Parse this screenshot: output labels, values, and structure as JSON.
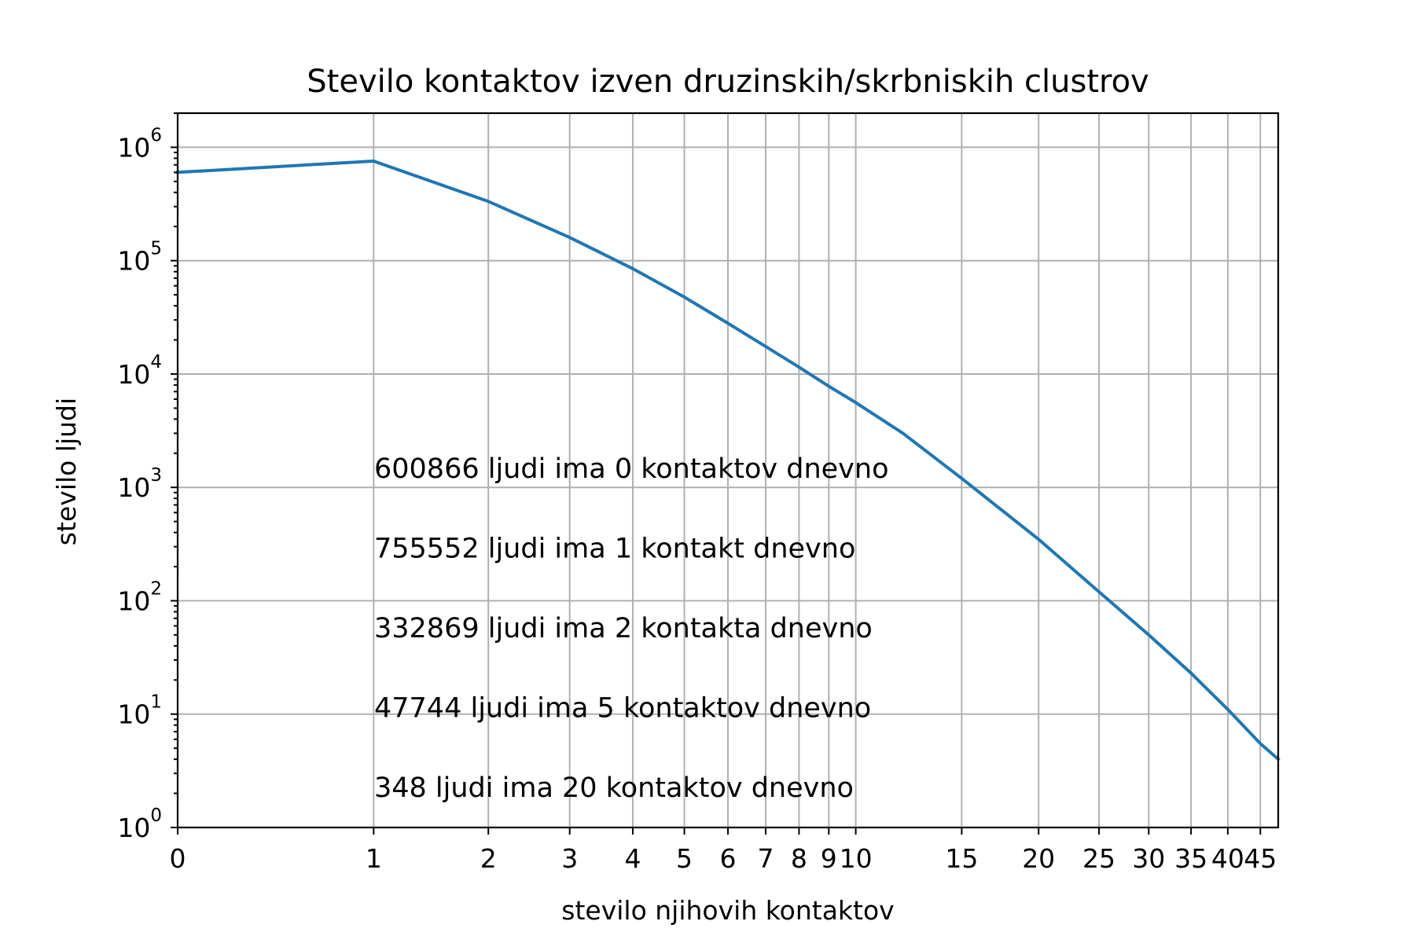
{
  "chart_data": {
    "type": "line",
    "title": "Stevilo kontaktov izven druzinskih/skrbniskih clustrov",
    "xlabel": "stevilo njihovih kontaktov",
    "ylabel": "stevilo ljudi",
    "x_scale": "symlog",
    "y_scale": "log",
    "xlim": [
      0,
      48
    ],
    "ylim": [
      1,
      2000000
    ],
    "grid": true,
    "x_ticks": [
      0,
      1,
      2,
      3,
      4,
      5,
      6,
      7,
      8,
      9,
      10,
      15,
      20,
      25,
      30,
      35,
      40,
      45
    ],
    "x_tick_labels": [
      "0",
      "1",
      "2",
      "3",
      "4",
      "5",
      "6",
      "7",
      "8",
      "9",
      "10",
      "15",
      "20",
      "25",
      "30",
      "35",
      "40",
      "45"
    ],
    "y_ticks": [
      1,
      10,
      100,
      1000,
      10000,
      100000,
      1000000
    ],
    "y_tick_labels": [
      {
        "base": "10",
        "exp": "0"
      },
      {
        "base": "10",
        "exp": "1"
      },
      {
        "base": "10",
        "exp": "2"
      },
      {
        "base": "10",
        "exp": "3"
      },
      {
        "base": "10",
        "exp": "4"
      },
      {
        "base": "10",
        "exp": "5"
      },
      {
        "base": "10",
        "exp": "6"
      }
    ],
    "series": [
      {
        "color": "#1f77b4",
        "x": [
          0,
          1,
          2,
          3,
          4,
          5,
          6,
          7,
          8,
          9,
          10,
          12,
          15,
          20,
          25,
          30,
          35,
          40,
          45,
          48
        ],
        "y": [
          600866,
          755552,
          332869,
          160000,
          85000,
          47744,
          28000,
          17500,
          11500,
          7800,
          5600,
          3000,
          1200,
          348,
          120,
          50,
          23,
          11,
          5.5,
          4
        ]
      }
    ],
    "annotations": [
      "600866 ljudi ima 0 kontaktov dnevno",
      "755552 ljudi ima 1 kontakt dnevno",
      "332869 ljudi ima 2 kontakta dnevno",
      "47744 ljudi ima 5 kontaktov dnevno",
      "348 ljudi ima 20 kontaktov dnevno"
    ]
  }
}
